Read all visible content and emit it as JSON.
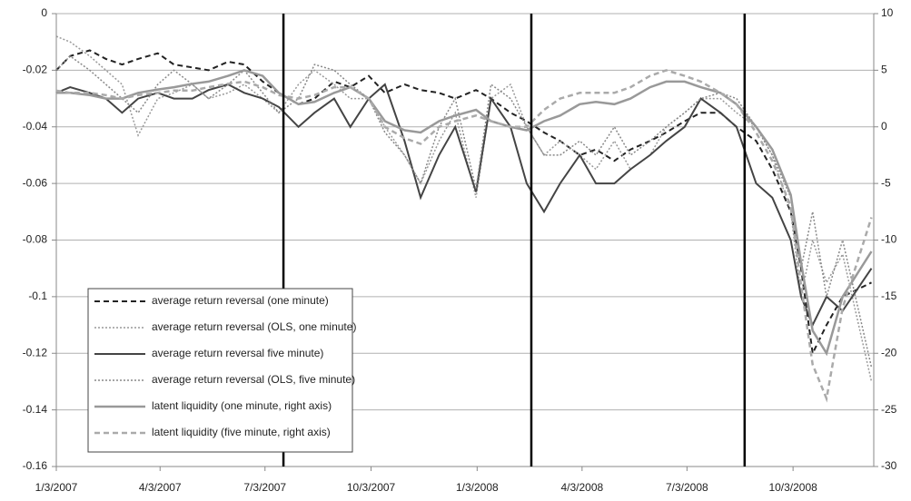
{
  "chart_data": {
    "type": "line",
    "x": [
      "1/3/2007",
      "1/15/2007",
      "2/1/2007",
      "2/15/2007",
      "3/1/2007",
      "3/15/2007",
      "4/1/2007",
      "4/15/2007",
      "5/1/2007",
      "5/15/2007",
      "6/1/2007",
      "6/15/2007",
      "7/1/2007",
      "7/15/2007",
      "8/1/2007",
      "8/15/2007",
      "9/1/2007",
      "9/15/2007",
      "10/1/2007",
      "10/15/2007",
      "11/1/2007",
      "11/15/2007",
      "12/1/2007",
      "12/15/2007",
      "1/2/2008",
      "1/15/2008",
      "2/1/2008",
      "2/15/2008",
      "3/1/2008",
      "3/15/2008",
      "4/1/2008",
      "4/15/2008",
      "5/1/2008",
      "5/15/2008",
      "6/1/2008",
      "6/15/2008",
      "7/1/2008",
      "7/15/2008",
      "8/1/2008",
      "8/15/2008",
      "9/1/2008",
      "9/15/2008",
      "10/1/2008",
      "10/10/2008",
      "10/20/2008",
      "11/1/2008",
      "11/15/2008",
      "12/10/2008"
    ],
    "xlim": [
      "1/3/2007",
      "12/12/2008"
    ],
    "xticks": [
      "1/3/2007",
      "4/3/2007",
      "7/3/2007",
      "10/3/2007",
      "1/3/2008",
      "4/3/2008",
      "7/3/2008",
      "10/3/2008"
    ],
    "ylim": [
      -0.16,
      0
    ],
    "yticks": [
      0,
      -0.02,
      -0.04,
      -0.06,
      -0.08,
      -0.1,
      -0.12,
      -0.14,
      -0.16
    ],
    "y2lim": [
      -30,
      10
    ],
    "y2ticks": [
      10,
      5,
      0,
      -5,
      -10,
      -15,
      -20,
      -25,
      -30
    ],
    "grid": true,
    "event_lines": [
      "7/19/2007",
      "2/19/2008",
      "8/22/2008"
    ],
    "series": [
      {
        "name": "average return reversal (one minute)",
        "color": "#222222",
        "style": "dashed",
        "width": 2,
        "values": [
          -0.02,
          -0.015,
          -0.013,
          -0.016,
          -0.018,
          -0.016,
          -0.014,
          -0.018,
          -0.019,
          -0.02,
          -0.017,
          -0.018,
          -0.024,
          -0.028,
          -0.032,
          -0.03,
          -0.024,
          -0.026,
          -0.022,
          -0.028,
          -0.025,
          -0.027,
          -0.028,
          -0.03,
          -0.027,
          -0.03,
          -0.035,
          -0.038,
          -0.042,
          -0.045,
          -0.05,
          -0.048,
          -0.052,
          -0.048,
          -0.045,
          -0.042,
          -0.038,
          -0.035,
          -0.035,
          -0.04,
          -0.045,
          -0.055,
          -0.07,
          -0.09,
          -0.12,
          -0.11,
          -0.1,
          -0.095
        ]
      },
      {
        "name": "average return reversal (OLS, one minute)",
        "color": "#999999",
        "style": "dotted",
        "width": 1.5,
        "values": [
          -0.008,
          -0.01,
          -0.015,
          -0.02,
          -0.025,
          -0.043,
          -0.03,
          -0.028,
          -0.025,
          -0.03,
          -0.028,
          -0.025,
          -0.03,
          -0.035,
          -0.025,
          -0.02,
          -0.025,
          -0.03,
          -0.03,
          -0.04,
          -0.05,
          -0.06,
          -0.045,
          -0.035,
          -0.065,
          -0.03,
          -0.025,
          -0.04,
          -0.05,
          -0.045,
          -0.05,
          -0.055,
          -0.045,
          -0.055,
          -0.05,
          -0.04,
          -0.035,
          -0.03,
          -0.03,
          -0.035,
          -0.04,
          -0.05,
          -0.07,
          -0.1,
          -0.08,
          -0.095,
          -0.085,
          -0.13
        ]
      },
      {
        "name": "average return reversal five minute)",
        "color": "#444444",
        "style": "solid",
        "width": 2,
        "values": [
          -0.028,
          -0.026,
          -0.028,
          -0.03,
          -0.035,
          -0.03,
          -0.028,
          -0.03,
          -0.03,
          -0.027,
          -0.025,
          -0.028,
          -0.03,
          -0.033,
          -0.04,
          -0.035,
          -0.03,
          -0.04,
          -0.03,
          -0.025,
          -0.045,
          -0.065,
          -0.05,
          -0.04,
          -0.063,
          -0.03,
          -0.04,
          -0.06,
          -0.07,
          -0.06,
          -0.05,
          -0.06,
          -0.06,
          -0.055,
          -0.05,
          -0.045,
          -0.04,
          -0.03,
          -0.035,
          -0.04,
          -0.06,
          -0.065,
          -0.08,
          -0.1,
          -0.11,
          -0.1,
          -0.105,
          -0.09
        ]
      },
      {
        "name": "average return reversal (OLS, five minute)",
        "color": "#888888",
        "style": "dotted",
        "width": 1.5,
        "values": [
          -0.02,
          -0.015,
          -0.02,
          -0.025,
          -0.03,
          -0.035,
          -0.025,
          -0.02,
          -0.025,
          -0.03,
          -0.025,
          -0.02,
          -0.028,
          -0.035,
          -0.03,
          -0.018,
          -0.02,
          -0.025,
          -0.03,
          -0.042,
          -0.05,
          -0.06,
          -0.04,
          -0.03,
          -0.062,
          -0.025,
          -0.03,
          -0.04,
          -0.05,
          -0.05,
          -0.045,
          -0.05,
          -0.04,
          -0.05,
          -0.045,
          -0.04,
          -0.035,
          -0.03,
          -0.028,
          -0.03,
          -0.04,
          -0.05,
          -0.065,
          -0.09,
          -0.07,
          -0.1,
          -0.08,
          -0.125
        ]
      },
      {
        "name": "latent liquidity (one minute, right axis)",
        "color": "#999999",
        "style": "solid",
        "width": 2.5,
        "axis": "y2",
        "values": [
          3,
          3,
          2.8,
          2.5,
          2.5,
          3,
          3.3,
          3.5,
          3.8,
          4,
          4.5,
          5,
          4.5,
          3,
          2,
          2.2,
          3,
          3.5,
          2.5,
          0.5,
          -0.3,
          -0.5,
          0.5,
          1,
          1.5,
          0.5,
          0,
          -0.3,
          0.5,
          1,
          2,
          2.2,
          2,
          2.5,
          3.5,
          4,
          4,
          3.5,
          3,
          2,
          0,
          -2,
          -6,
          -12,
          -18,
          -20,
          -15,
          -11
        ]
      },
      {
        "name": "latent liquidity (five minute, right axis)",
        "color": "#aaaaaa",
        "style": "dashed",
        "width": 2.5,
        "axis": "y2",
        "values": [
          3.2,
          3,
          3,
          2.8,
          2.5,
          2.8,
          3,
          3.2,
          3.2,
          3.5,
          3.8,
          4,
          3.5,
          2.8,
          2.5,
          2.8,
          3.5,
          3.5,
          2.5,
          0,
          -1,
          -1.5,
          0,
          0.5,
          1,
          0.5,
          0,
          0,
          1.5,
          2.5,
          3,
          3,
          3,
          3.5,
          4.5,
          5,
          4.5,
          4,
          3,
          2,
          -0.5,
          -3,
          -7,
          -14,
          -21,
          -24,
          -16,
          -8
        ]
      }
    ]
  }
}
